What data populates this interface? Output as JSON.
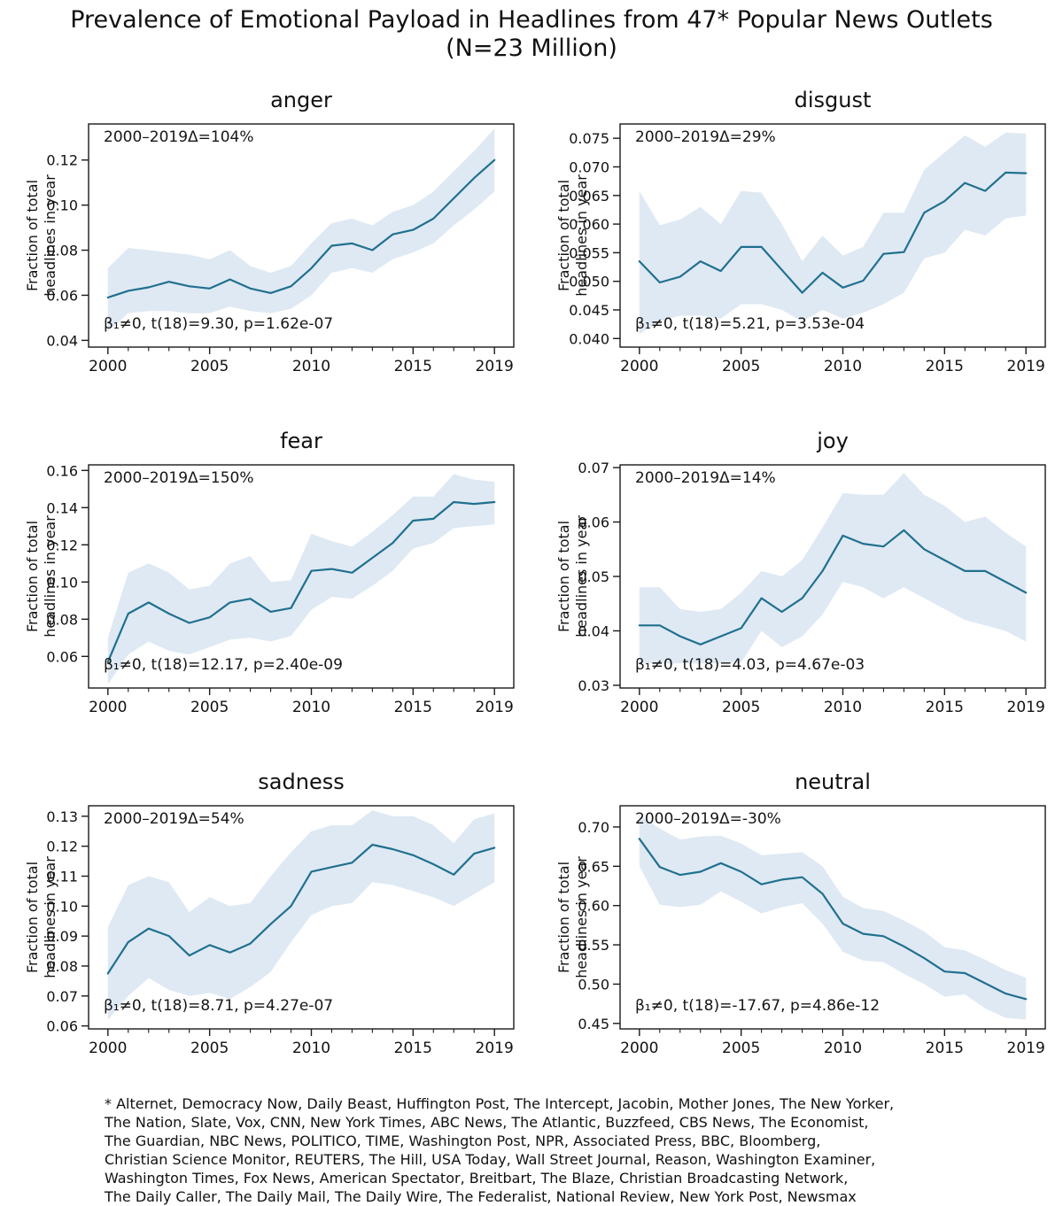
{
  "figure": {
    "title": "Prevalence of Emotional Payload in Headlines from 47* Popular News Outlets",
    "subtitle": "(N=23 Million)",
    "footnote_lines": [
      "* Alternet, Democracy Now, Daily Beast, Huffington Post, The Intercept, Jacobin, Mother Jones, The New Yorker,",
      "The Nation, Slate, Vox, CNN, New York Times, ABC News, The Atlantic, Buzzfeed, CBS News, The Economist,",
      "The Guardian, NBC News, POLITICO, TIME, Washington Post, NPR, Associated Press, BBC, Bloomberg,",
      "Christian Science Monitor, REUTERS, The Hill, USA Today, Wall Street Journal, Reason, Washington Examiner,",
      "Washington Times, Fox News, American Spectator, Breitbart, The Blaze, Christian Broadcasting Network,",
      "The Daily Caller, The Daily Mail, The Daily Wire, The Federalist, National Review, New York Post, Newsmax"
    ]
  },
  "style": {
    "line_color": "#20708f",
    "band_color": "#dfe9f3",
    "axis_color": "#1a1a1a",
    "text_color": "#111111",
    "background": "#ffffff"
  },
  "chart_data": [
    {
      "type": "line",
      "title": "anger",
      "delta_annotation": "2000–2019Δ=104%",
      "stat_annotation": "β₁≠0, t(18)=9.30, p=1.62e-07",
      "ylabel": "Fraction of total\nheadlines in year",
      "x": [
        2000,
        2001,
        2002,
        2003,
        2004,
        2005,
        2006,
        2007,
        2008,
        2009,
        2010,
        2011,
        2012,
        2013,
        2014,
        2015,
        2016,
        2017,
        2018,
        2019
      ],
      "values": [
        0.059,
        0.062,
        0.0635,
        0.066,
        0.064,
        0.063,
        0.067,
        0.063,
        0.061,
        0.064,
        0.072,
        0.082,
        0.083,
        0.08,
        0.087,
        0.089,
        0.094,
        0.103,
        0.112,
        0.12
      ],
      "band_lower": [
        0.044,
        0.052,
        0.053,
        0.053,
        0.052,
        0.052,
        0.055,
        0.053,
        0.052,
        0.054,
        0.06,
        0.07,
        0.072,
        0.07,
        0.076,
        0.079,
        0.083,
        0.091,
        0.098,
        0.106
      ],
      "band_upper": [
        0.072,
        0.081,
        0.08,
        0.079,
        0.078,
        0.076,
        0.08,
        0.073,
        0.07,
        0.073,
        0.083,
        0.092,
        0.094,
        0.091,
        0.097,
        0.1,
        0.106,
        0.115,
        0.124,
        0.134
      ],
      "xlim": [
        1999.05,
        2019.95
      ],
      "ylim": [
        0.037,
        0.136
      ],
      "xticks_major": [
        2000,
        2005,
        2010,
        2015,
        2019
      ],
      "xtick_labels": [
        "2000",
        "2005",
        "2010",
        "2015",
        "2019"
      ],
      "yticks": [
        0.04,
        0.06,
        0.08,
        0.1,
        0.12
      ],
      "ytick_labels": [
        "0.04",
        "0.06",
        "0.08",
        "0.10",
        "0.12"
      ],
      "grid": false,
      "legend": "none"
    },
    {
      "type": "line",
      "title": "disgust",
      "delta_annotation": "2000–2019Δ=29%",
      "stat_annotation": "β₁≠0, t(18)=5.21, p=3.53e-04",
      "ylabel": "Fraction of total\nheadlines in year",
      "x": [
        2000,
        2001,
        2002,
        2003,
        2004,
        2005,
        2006,
        2007,
        2008,
        2009,
        2010,
        2011,
        2012,
        2013,
        2014,
        2015,
        2016,
        2017,
        2018,
        2019
      ],
      "values": [
        0.0535,
        0.0498,
        0.0508,
        0.0535,
        0.0518,
        0.056,
        0.056,
        0.052,
        0.048,
        0.0515,
        0.0489,
        0.0501,
        0.0548,
        0.0551,
        0.062,
        0.064,
        0.0672,
        0.0658,
        0.069,
        0.0689
      ],
      "band_lower": [
        0.0408,
        0.043,
        0.044,
        0.044,
        0.0435,
        0.046,
        0.046,
        0.045,
        0.043,
        0.045,
        0.0435,
        0.0445,
        0.046,
        0.048,
        0.054,
        0.055,
        0.059,
        0.058,
        0.061,
        0.0615
      ],
      "band_upper": [
        0.0658,
        0.0598,
        0.0608,
        0.063,
        0.06,
        0.0658,
        0.0655,
        0.06,
        0.0535,
        0.058,
        0.0545,
        0.056,
        0.062,
        0.062,
        0.0695,
        0.0725,
        0.0755,
        0.0735,
        0.076,
        0.0758
      ],
      "xlim": [
        1999.05,
        2019.95
      ],
      "ylim": [
        0.0385,
        0.0775
      ],
      "xticks_major": [
        2000,
        2005,
        2010,
        2015,
        2019
      ],
      "xtick_labels": [
        "2000",
        "2005",
        "2010",
        "2015",
        "2019"
      ],
      "yticks": [
        0.04,
        0.045,
        0.05,
        0.055,
        0.06,
        0.065,
        0.07,
        0.075
      ],
      "ytick_labels": [
        "0.040",
        "0.045",
        "0.050",
        "0.055",
        "0.060",
        "0.065",
        "0.070",
        "0.075"
      ],
      "grid": false,
      "legend": "none"
    },
    {
      "type": "line",
      "title": "fear",
      "delta_annotation": "2000–2019Δ=150%",
      "stat_annotation": "β₁≠0, t(18)=12.17, p=2.40e-09",
      "ylabel": "Fraction of total\nheadlines in year",
      "x": [
        2000,
        2001,
        2002,
        2003,
        2004,
        2005,
        2006,
        2007,
        2008,
        2009,
        2010,
        2011,
        2012,
        2013,
        2014,
        2015,
        2016,
        2017,
        2018,
        2019
      ],
      "values": [
        0.057,
        0.083,
        0.089,
        0.083,
        0.078,
        0.081,
        0.089,
        0.091,
        0.084,
        0.086,
        0.106,
        0.107,
        0.105,
        0.113,
        0.121,
        0.133,
        0.134,
        0.143,
        0.142,
        0.143
      ],
      "band_lower": [
        0.045,
        0.061,
        0.068,
        0.063,
        0.061,
        0.065,
        0.069,
        0.07,
        0.068,
        0.071,
        0.085,
        0.092,
        0.091,
        0.098,
        0.106,
        0.118,
        0.121,
        0.129,
        0.13,
        0.131
      ],
      "band_upper": [
        0.07,
        0.105,
        0.11,
        0.105,
        0.096,
        0.098,
        0.11,
        0.114,
        0.1,
        0.101,
        0.126,
        0.122,
        0.119,
        0.127,
        0.136,
        0.146,
        0.146,
        0.158,
        0.155,
        0.154
      ],
      "xlim": [
        1999.05,
        2019.95
      ],
      "ylim": [
        0.043,
        0.163
      ],
      "xticks_major": [
        2000,
        2005,
        2010,
        2015,
        2019
      ],
      "xtick_labels": [
        "2000",
        "2005",
        "2010",
        "2015",
        "2019"
      ],
      "yticks": [
        0.06,
        0.08,
        0.1,
        0.12,
        0.14,
        0.16
      ],
      "ytick_labels": [
        "0.06",
        "0.08",
        "0.10",
        "0.12",
        "0.14",
        "0.16"
      ],
      "grid": false,
      "legend": "none"
    },
    {
      "type": "line",
      "title": "joy",
      "delta_annotation": "2000–2019Δ=14%",
      "stat_annotation": "β₁≠0, t(18)=4.03, p=4.67e-03",
      "ylabel": "Fraction of total\nheadlines in year",
      "x": [
        2000,
        2001,
        2002,
        2003,
        2004,
        2005,
        2006,
        2007,
        2008,
        2009,
        2010,
        2011,
        2012,
        2013,
        2014,
        2015,
        2016,
        2017,
        2018,
        2019
      ],
      "values": [
        0.041,
        0.041,
        0.039,
        0.0375,
        0.039,
        0.0405,
        0.046,
        0.0435,
        0.046,
        0.051,
        0.0575,
        0.056,
        0.0555,
        0.0585,
        0.055,
        0.053,
        0.051,
        0.051,
        0.049,
        0.047
      ],
      "band_lower": [
        0.034,
        0.034,
        0.034,
        0.034,
        0.034,
        0.0342,
        0.04,
        0.037,
        0.039,
        0.043,
        0.049,
        0.048,
        0.046,
        0.048,
        0.046,
        0.044,
        0.042,
        0.041,
        0.04,
        0.038
      ],
      "band_upper": [
        0.048,
        0.048,
        0.044,
        0.0435,
        0.044,
        0.047,
        0.051,
        0.05,
        0.053,
        0.059,
        0.0653,
        0.065,
        0.065,
        0.069,
        0.065,
        0.063,
        0.06,
        0.061,
        0.058,
        0.0555
      ],
      "xlim": [
        1999.05,
        2019.95
      ],
      "ylim": [
        0.0295,
        0.0705
      ],
      "xticks_major": [
        2000,
        2005,
        2010,
        2015,
        2019
      ],
      "xtick_labels": [
        "2000",
        "2005",
        "2010",
        "2015",
        "2019"
      ],
      "yticks": [
        0.03,
        0.04,
        0.05,
        0.06,
        0.07
      ],
      "ytick_labels": [
        "0.03",
        "0.04",
        "0.05",
        "0.06",
        "0.07"
      ],
      "grid": false,
      "legend": "none"
    },
    {
      "type": "line",
      "title": "sadness",
      "delta_annotation": "2000–2019Δ=54%",
      "stat_annotation": "β₁≠0, t(18)=8.71, p=4.27e-07",
      "ylabel": "Fraction of total\nheadlines in year",
      "x": [
        2000,
        2001,
        2002,
        2003,
        2004,
        2005,
        2006,
        2007,
        2008,
        2009,
        2010,
        2011,
        2012,
        2013,
        2014,
        2015,
        2016,
        2017,
        2018,
        2019
      ],
      "values": [
        0.0775,
        0.088,
        0.0925,
        0.09,
        0.0835,
        0.087,
        0.0845,
        0.0875,
        0.094,
        0.1,
        0.1115,
        0.113,
        0.1145,
        0.1205,
        0.119,
        0.117,
        0.114,
        0.1105,
        0.1175,
        0.1195
      ],
      "band_lower": [
        0.062,
        0.07,
        0.076,
        0.072,
        0.07,
        0.071,
        0.069,
        0.073,
        0.078,
        0.088,
        0.097,
        0.1,
        0.101,
        0.108,
        0.107,
        0.105,
        0.103,
        0.1,
        0.104,
        0.108
      ],
      "band_upper": [
        0.093,
        0.107,
        0.11,
        0.108,
        0.098,
        0.103,
        0.1,
        0.101,
        0.11,
        0.118,
        0.125,
        0.127,
        0.127,
        0.132,
        0.13,
        0.13,
        0.127,
        0.121,
        0.129,
        0.131
      ],
      "xlim": [
        1999.05,
        2019.95
      ],
      "ylim": [
        0.059,
        0.1335
      ],
      "xticks_major": [
        2000,
        2005,
        2010,
        2015,
        2019
      ],
      "xtick_labels": [
        "2000",
        "2005",
        "2010",
        "2015",
        "2019"
      ],
      "yticks": [
        0.06,
        0.07,
        0.08,
        0.09,
        0.1,
        0.11,
        0.12,
        0.13
      ],
      "ytick_labels": [
        "0.06",
        "0.07",
        "0.08",
        "0.09",
        "0.10",
        "0.11",
        "0.12",
        "0.13"
      ],
      "grid": false,
      "legend": "none"
    },
    {
      "type": "line",
      "title": "neutral",
      "delta_annotation": "2000–2019Δ=-30%",
      "stat_annotation": "β₁≠0, t(18)=-17.67, p=4.86e-12",
      "ylabel": "Fraction of total\nheadlines in year",
      "x": [
        2000,
        2001,
        2002,
        2003,
        2004,
        2005,
        2006,
        2007,
        2008,
        2009,
        2010,
        2011,
        2012,
        2013,
        2014,
        2015,
        2016,
        2017,
        2018,
        2019
      ],
      "values": [
        0.685,
        0.649,
        0.639,
        0.643,
        0.654,
        0.643,
        0.627,
        0.633,
        0.636,
        0.615,
        0.577,
        0.564,
        0.561,
        0.548,
        0.533,
        0.516,
        0.514,
        0.501,
        0.488,
        0.481
      ],
      "band_lower": [
        0.65,
        0.601,
        0.598,
        0.601,
        0.618,
        0.605,
        0.59,
        0.598,
        0.603,
        0.577,
        0.541,
        0.53,
        0.528,
        0.513,
        0.5,
        0.484,
        0.487,
        0.469,
        0.457,
        0.455
      ],
      "band_upper": [
        0.715,
        0.698,
        0.684,
        0.688,
        0.689,
        0.679,
        0.664,
        0.666,
        0.668,
        0.65,
        0.611,
        0.597,
        0.593,
        0.581,
        0.567,
        0.547,
        0.543,
        0.531,
        0.518,
        0.508
      ],
      "xlim": [
        1999.05,
        2019.95
      ],
      "ylim": [
        0.443,
        0.727
      ],
      "xticks_major": [
        2000,
        2005,
        2010,
        2015,
        2019
      ],
      "xtick_labels": [
        "2000",
        "2005",
        "2010",
        "2015",
        "2019"
      ],
      "yticks": [
        0.45,
        0.5,
        0.55,
        0.6,
        0.65,
        0.7
      ],
      "ytick_labels": [
        "0.45",
        "0.50",
        "0.55",
        "0.60",
        "0.65",
        "0.70"
      ],
      "grid": false,
      "legend": "none"
    }
  ]
}
